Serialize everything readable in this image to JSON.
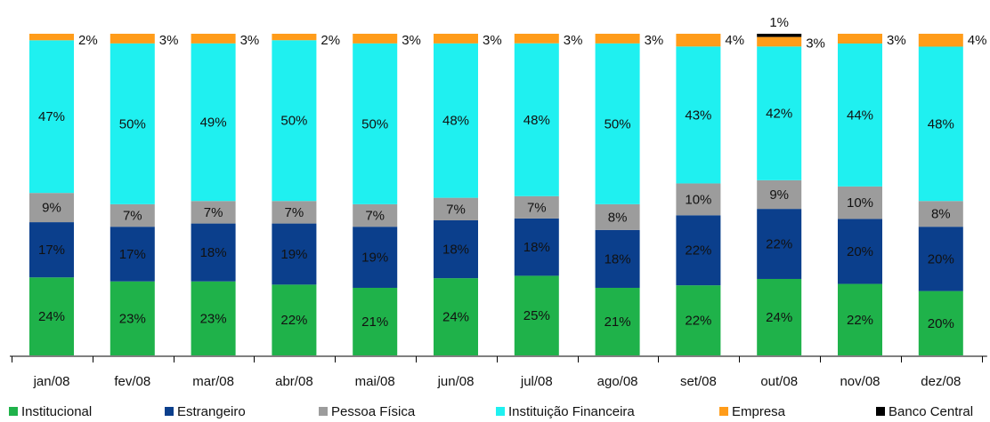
{
  "chart_data": {
    "type": "bar",
    "stacked": true,
    "normalized_to_percent": true,
    "categories": [
      "jan/08",
      "fev/08",
      "mar/08",
      "abr/08",
      "mai/08",
      "jun/08",
      "jul/08",
      "ago/08",
      "set/08",
      "out/08",
      "nov/08",
      "dez/08"
    ],
    "series": [
      {
        "name": "Institucional",
        "color": "#1fb24a",
        "values": [
          24,
          23,
          23,
          22,
          21,
          24,
          25,
          21,
          22,
          24,
          22,
          20
        ]
      },
      {
        "name": "Estrangeiro",
        "color": "#0b3f8c",
        "values": [
          17,
          17,
          18,
          19,
          19,
          18,
          18,
          18,
          22,
          22,
          20,
          20
        ]
      },
      {
        "name": "Pessoa Física",
        "color": "#9c9c9c",
        "values": [
          9,
          7,
          7,
          7,
          7,
          7,
          7,
          8,
          10,
          9,
          10,
          8
        ]
      },
      {
        "name": "Instituição Financeira",
        "color": "#1ff0f0",
        "values": [
          47,
          50,
          49,
          50,
          50,
          48,
          48,
          50,
          43,
          42,
          44,
          48
        ]
      },
      {
        "name": "Empresa",
        "color": "#ff9c1a",
        "values": [
          2,
          3,
          3,
          2,
          3,
          3,
          3,
          3,
          4,
          3,
          3,
          4
        ]
      },
      {
        "name": "Banco Central",
        "color": "#000000",
        "values": [
          0,
          0,
          0,
          0,
          0,
          0,
          0,
          0,
          0,
          1,
          0,
          0
        ]
      }
    ],
    "labels": [
      [
        "24%",
        "23%",
        "23%",
        "22%",
        "21%",
        "24%",
        "25%",
        "21%",
        "22%",
        "24%",
        "22%",
        "20%"
      ],
      [
        "17%",
        "17%",
        "18%",
        "19%",
        "19%",
        "18%",
        "18%",
        "18%",
        "22%",
        "22%",
        "20%",
        "20%"
      ],
      [
        "9%",
        "7%",
        "7%",
        "7%",
        "7%",
        "7%",
        "7%",
        "8%",
        "10%",
        "9%",
        "10%",
        "8%"
      ],
      [
        "47%",
        "50%",
        "49%",
        "50%",
        "50%",
        "48%",
        "48%",
        "50%",
        "43%",
        "42%",
        "44%",
        "48%"
      ],
      [
        "2%",
        "3%",
        "3%",
        "2%",
        "3%",
        "3%",
        "3%",
        "3%",
        "4%",
        "3%",
        "3%",
        "4%"
      ],
      [
        "",
        "",
        "",
        "",
        "",
        "",
        "",
        "",
        "",
        "1%",
        "",
        ""
      ]
    ],
    "ylim": [
      0,
      100
    ],
    "grid": false,
    "legend_position": "bottom",
    "title": "",
    "xlabel": "",
    "ylabel": ""
  }
}
